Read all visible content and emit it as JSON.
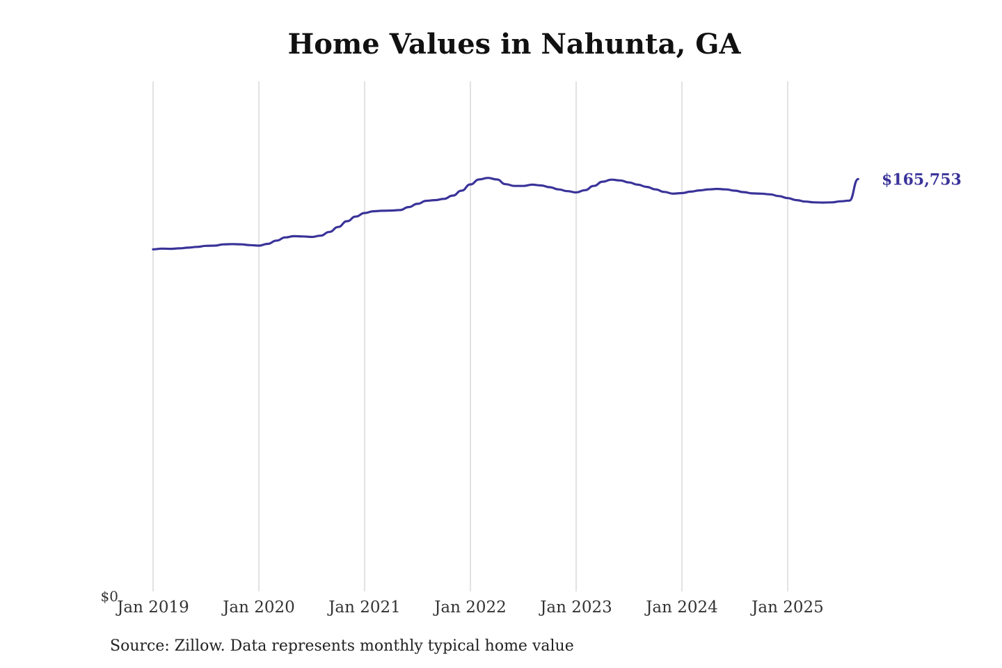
{
  "chart_data": {
    "type": "line",
    "title": "Home Values in Nahunta, GA",
    "xlabel": "",
    "ylabel": "",
    "x_tick_labels": [
      "Jan 2019",
      "Jan 2020",
      "Jan 2021",
      "Jan 2022",
      "Jan 2023",
      "Jan 2024",
      "Jan 2025"
    ],
    "y_tick_labels": [
      "$0"
    ],
    "ylim": [
      0,
      205000
    ],
    "grid": "vertical",
    "line_color": "#3a3399",
    "end_value_label": "$165,753",
    "series": [
      {
        "x": [
          "2019-01",
          "2019-02",
          "2019-03",
          "2019-04",
          "2019-05",
          "2019-06",
          "2019-07",
          "2019-08",
          "2019-09",
          "2019-10",
          "2019-11",
          "2019-12",
          "2020-01",
          "2020-02",
          "2020-03",
          "2020-04",
          "2020-05",
          "2020-06",
          "2020-07",
          "2020-08",
          "2020-09",
          "2020-10",
          "2020-11",
          "2020-12",
          "2021-01",
          "2021-02",
          "2021-03",
          "2021-04",
          "2021-05",
          "2021-06",
          "2021-07",
          "2021-08",
          "2021-09",
          "2021-10",
          "2021-11",
          "2021-12",
          "2022-01",
          "2022-02",
          "2022-03",
          "2022-04",
          "2022-05",
          "2022-06",
          "2022-07",
          "2022-08",
          "2022-09",
          "2022-10",
          "2022-11",
          "2022-12",
          "2023-01",
          "2023-02",
          "2023-03",
          "2023-04",
          "2023-05",
          "2023-06",
          "2023-07",
          "2023-08",
          "2023-09",
          "2023-10",
          "2023-11",
          "2023-12",
          "2024-01",
          "2024-02",
          "2024-03",
          "2024-04",
          "2024-05",
          "2024-06",
          "2024-07",
          "2024-08",
          "2024-09",
          "2024-10",
          "2024-11",
          "2024-12",
          "2025-01",
          "2025-02",
          "2025-03",
          "2025-04",
          "2025-05",
          "2025-06",
          "2025-07",
          "2025-08",
          "2025-09"
        ],
        "values": [
          137500,
          137800,
          137700,
          137900,
          138200,
          138500,
          138900,
          139000,
          139500,
          139600,
          139500,
          139200,
          139000,
          139700,
          141000,
          142300,
          142800,
          142700,
          142500,
          143000,
          144500,
          146500,
          148800,
          150700,
          152100,
          152800,
          153000,
          153100,
          153300,
          154500,
          155800,
          157000,
          157300,
          157800,
          159100,
          161100,
          163600,
          165600,
          166200,
          165600,
          163700,
          163000,
          163000,
          163500,
          163200,
          162500,
          161600,
          160900,
          160400,
          161300,
          163000,
          164700,
          165500,
          165200,
          164400,
          163500,
          162600,
          161600,
          160600,
          159900,
          160100,
          160700,
          161200,
          161600,
          161800,
          161600,
          161100,
          160500,
          160000,
          159900,
          159600,
          158900,
          158100,
          157300,
          156700,
          156400,
          156300,
          156400,
          156800,
          157100,
          165753
        ]
      }
    ]
  },
  "source": "Source: Zillow. Data represents monthly typical home value"
}
